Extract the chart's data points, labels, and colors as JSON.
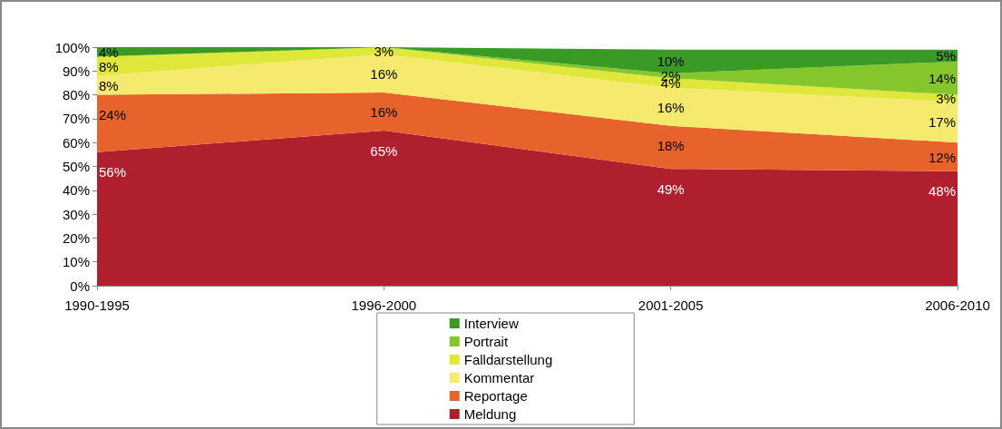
{
  "chart_data": {
    "type": "area",
    "stacked": true,
    "categories": [
      "1990-1995",
      "1996-2000",
      "2001-2005",
      "2006-2010"
    ],
    "ylim": [
      0,
      100
    ],
    "yticks": [
      {
        "value": 0,
        "label": "0%"
      },
      {
        "value": 10,
        "label": "10%"
      },
      {
        "value": 20,
        "label": "20%"
      },
      {
        "value": 30,
        "label": "30%"
      },
      {
        "value": 40,
        "label": "40%"
      },
      {
        "value": 50,
        "label": "50%"
      },
      {
        "value": 60,
        "label": "60%"
      },
      {
        "value": 70,
        "label": "70%"
      },
      {
        "value": 80,
        "label": "80%"
      },
      {
        "value": 90,
        "label": "90%"
      },
      {
        "value": 100,
        "label": "100%"
      }
    ],
    "grid": false,
    "legend": "bottom",
    "series": [
      {
        "name": "Meldung",
        "color": "#b01f2e",
        "values": [
          56,
          65,
          49,
          48
        ],
        "value_labels": [
          "56%",
          "65%",
          "49%",
          "48%"
        ]
      },
      {
        "name": "Reportage",
        "color": "#e8622c",
        "values": [
          24,
          16,
          18,
          12
        ],
        "value_labels": [
          "24%",
          "16%",
          "18%",
          "12%"
        ]
      },
      {
        "name": "Kommentar",
        "color": "#f5e96e",
        "values": [
          8,
          16,
          16,
          17
        ],
        "value_labels": [
          "8%",
          "16%",
          "16%",
          "17%"
        ]
      },
      {
        "name": "Falldarstellung",
        "color": "#dfe83a",
        "values": [
          8,
          3,
          4,
          3
        ],
        "value_labels": [
          "8%",
          "3%",
          "4%",
          "3%"
        ]
      },
      {
        "name": "Portrait",
        "color": "#84c62c",
        "values": [
          0,
          0,
          2,
          14
        ],
        "value_labels": [
          null,
          null,
          "2%",
          "14%"
        ]
      },
      {
        "name": "Interview",
        "color": "#3a9a26",
        "values": [
          4,
          0,
          10,
          5
        ],
        "value_labels": [
          "4%",
          null,
          "10%",
          "5%"
        ]
      }
    ]
  }
}
